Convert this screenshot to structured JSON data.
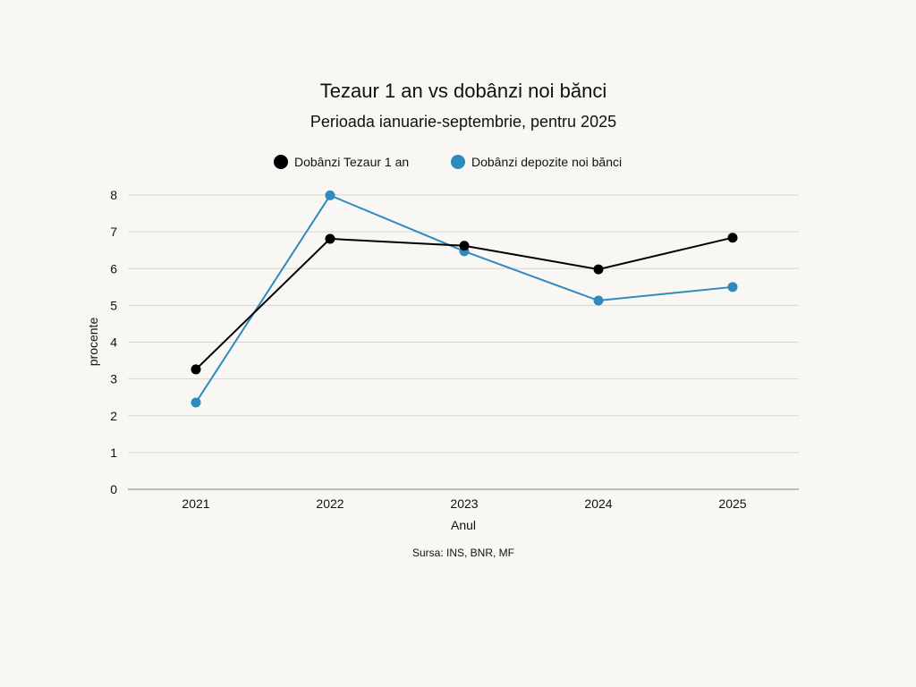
{
  "chart_data": {
    "type": "line",
    "title": "Tezaur 1 an vs dobânzi noi bănci",
    "subtitle": "Perioada ianuarie-septembrie, pentru 2025",
    "xlabel": "Anul",
    "ylabel": "procente",
    "source": "Sursa: INS, BNR, MF",
    "x": [
      "2021",
      "2022",
      "2023",
      "2024",
      "2025"
    ],
    "ylim": [
      0,
      8
    ],
    "yticks": [
      0,
      1,
      2,
      3,
      4,
      5,
      6,
      7,
      8
    ],
    "grid": true,
    "legend_position": "top-center",
    "series": [
      {
        "name": "Dobânzi Tezaur 1 an",
        "color": "#000000",
        "values": [
          3.26,
          6.81,
          6.62,
          5.98,
          6.84
        ]
      },
      {
        "name": "Dobânzi depozite noi bănci",
        "color": "#2e8bbd",
        "values": [
          2.36,
          7.99,
          6.47,
          5.13,
          5.5
        ]
      }
    ]
  },
  "colors": {
    "background": "#f9f7f3",
    "grid": "#d9d6d0",
    "axis": "#9a9893"
  }
}
